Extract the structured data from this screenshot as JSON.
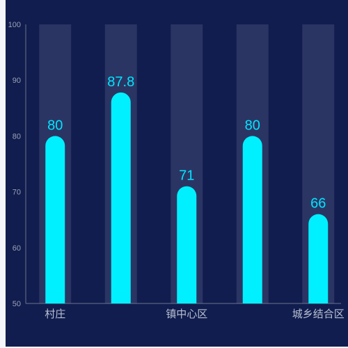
{
  "colors": {
    "page_background": "#f4f6fb",
    "panel_background": "#111d4e",
    "bar": "#00f0ff",
    "track": "#2b3564",
    "axis": "#6b7390",
    "value_label": "#00e5ff"
  },
  "chart_data": {
    "type": "bar",
    "categories": [
      "村庄",
      "",
      "镇中心区",
      "",
      "城乡结合区"
    ],
    "values": [
      80,
      87.8,
      71,
      80,
      66
    ],
    "value_labels": [
      "80",
      "87.8",
      "71",
      "80",
      "66"
    ],
    "ylim": [
      50,
      100
    ],
    "yticks": [
      50,
      60,
      70,
      80,
      90,
      100
    ],
    "ytick_labels": [
      "50",
      "60",
      "70",
      "80",
      "90",
      "100"
    ],
    "background_track_max": 100,
    "grid": false,
    "bar_style": "rounded-top"
  }
}
